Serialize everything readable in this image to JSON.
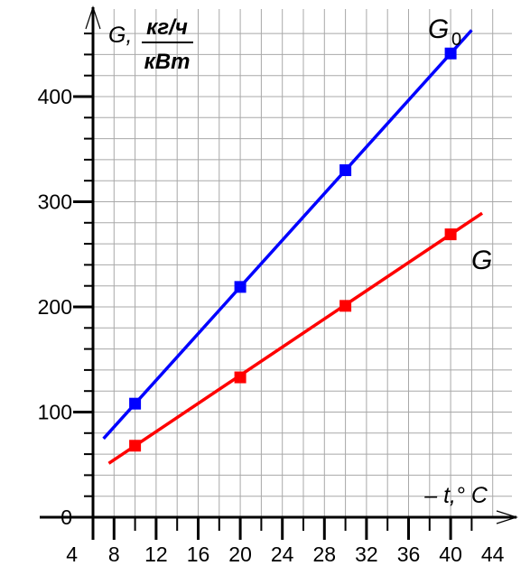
{
  "chart_data": {
    "type": "line",
    "x_axis": {
      "label": "– t,° C",
      "range": [
        4,
        44
      ],
      "ticks": [
        4,
        8,
        12,
        16,
        20,
        24,
        28,
        32,
        36,
        40,
        44
      ],
      "grid_step": 2
    },
    "y_axis": {
      "label": "G,",
      "unit_numerator": "кг/ч",
      "unit_denominator": "кВт",
      "range": [
        0,
        460
      ],
      "ticks": [
        0,
        100,
        200,
        300,
        400
      ],
      "grid_step": 20
    },
    "grid": true,
    "series": [
      {
        "name": "G",
        "name_subscript": "0",
        "color": "#0000ff",
        "line_x": [
          7,
          42
        ],
        "points": [
          {
            "x": 10,
            "y": 108
          },
          {
            "x": 20,
            "y": 219
          },
          {
            "x": 30,
            "y": 330
          },
          {
            "x": 40,
            "y": 441
          }
        ]
      },
      {
        "name": "G",
        "name_subscript": "",
        "color": "#ff0000",
        "line_x": [
          7.5,
          43
        ],
        "points": [
          {
            "x": 10,
            "y": 68
          },
          {
            "x": 20,
            "y": 133
          },
          {
            "x": 30,
            "y": 201
          },
          {
            "x": 40,
            "y": 269
          }
        ]
      }
    ]
  }
}
